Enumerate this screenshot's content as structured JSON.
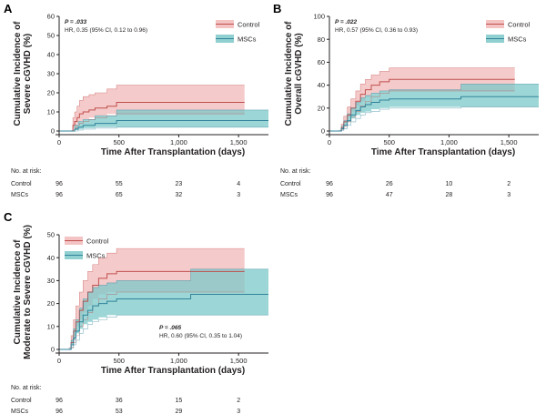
{
  "colors": {
    "control_line": "#c0504d",
    "control_band": "#f2b8b8",
    "mscs_line": "#31849b",
    "mscs_band": "#7cc8c8"
  },
  "chart_data": [
    {
      "id": "A",
      "type": "line",
      "panel_label": "A",
      "ylabel": [
        "Cumulative Incidence of",
        "Severe cGVHD (%)"
      ],
      "xlabel": "Time After Transplantation (days)",
      "ylim": [
        0,
        60
      ],
      "yticks": [
        0,
        10,
        20,
        30,
        40,
        50,
        60
      ],
      "xlim": [
        0,
        1750
      ],
      "xticks": [
        0,
        500,
        1000,
        1500
      ],
      "xtick_labels": [
        "0",
        "500",
        "1,000",
        "1,500"
      ],
      "stat_p": "P = .033",
      "stat_hr": "HR, 0.35 (95% CI, 0.12 to 0.96)",
      "stat_position": "top-left",
      "legend_position": "top-right",
      "series": [
        {
          "name": "Control",
          "x": [
            0,
            100,
            115,
            130,
            150,
            170,
            200,
            250,
            300,
            400,
            480,
            1550
          ],
          "y": [
            0,
            0,
            3,
            5,
            7,
            9,
            10,
            11,
            12,
            13,
            15,
            15
          ],
          "upper": [
            0,
            0,
            7,
            10,
            13,
            16,
            18,
            19,
            20,
            22,
            24,
            24
          ],
          "lower": [
            0,
            0,
            0.5,
            1.5,
            3,
            4,
            5,
            6,
            7,
            8,
            9,
            9
          ]
        },
        {
          "name": "MSCs",
          "x": [
            0,
            100,
            130,
            160,
            200,
            300,
            480,
            1750
          ],
          "y": [
            0,
            0,
            1,
            2,
            3,
            4,
            5.5,
            5.5
          ],
          "upper": [
            0,
            0,
            3,
            5,
            6,
            8,
            11,
            11
          ],
          "lower": [
            0,
            0,
            0,
            0.5,
            1,
            1.5,
            2,
            2
          ]
        }
      ],
      "risk_table": {
        "title": "No. at risk:",
        "rows": [
          {
            "label": "Control",
            "values": [
              "96",
              "55",
              "23",
              "4"
            ]
          },
          {
            "label": "MSCs",
            "values": [
              "96",
              "65",
              "32",
              "3"
            ]
          }
        ]
      }
    },
    {
      "id": "B",
      "type": "line",
      "panel_label": "B",
      "ylabel": [
        "Cumulative Incidence of",
        "Overall cGVHD (%)"
      ],
      "xlabel": "Time After Transplantation (days)",
      "ylim": [
        0,
        100
      ],
      "yticks": [
        0,
        20,
        40,
        60,
        80,
        100
      ],
      "xlim": [
        0,
        1750
      ],
      "xticks": [
        0,
        500,
        1000,
        1500
      ],
      "xtick_labels": [
        "0",
        "500",
        "1,000",
        "1,500"
      ],
      "stat_p": "P = .022",
      "stat_hr": "HR, 0.57 (95% CI, 0.36 to 0.93)",
      "stat_position": "top-left",
      "legend_position": "top-right",
      "series": [
        {
          "name": "Control",
          "x": [
            0,
            80,
            100,
            120,
            150,
            180,
            220,
            260,
            300,
            350,
            420,
            500,
            1100,
            1550
          ],
          "y": [
            0,
            0,
            3,
            8,
            14,
            20,
            26,
            32,
            36,
            40,
            43,
            45,
            45,
            45
          ],
          "upper": [
            0,
            0,
            6,
            13,
            21,
            28,
            35,
            41,
            45,
            49,
            52,
            55,
            55,
            55
          ],
          "lower": [
            0,
            0,
            1,
            4,
            8,
            12,
            17,
            22,
            26,
            30,
            33,
            35,
            35,
            35
          ]
        },
        {
          "name": "MSCs",
          "x": [
            0,
            80,
            100,
            120,
            150,
            180,
            220,
            260,
            300,
            350,
            420,
            500,
            1100,
            1750
          ],
          "y": [
            0,
            0,
            2,
            5,
            9,
            14,
            18,
            21,
            23,
            25,
            27,
            28,
            30,
            30
          ],
          "upper": [
            0,
            0,
            4,
            9,
            15,
            20,
            25,
            29,
            31,
            33,
            35,
            36,
            41,
            41
          ],
          "lower": [
            0,
            0,
            0.5,
            2,
            5,
            8,
            11,
            14,
            16,
            17,
            19,
            20,
            21,
            21
          ]
        }
      ],
      "risk_table": {
        "title": "No. at risk:",
        "rows": [
          {
            "label": "Control",
            "values": [
              "96",
              "26",
              "10",
              "2"
            ]
          },
          {
            "label": "MSCs",
            "values": [
              "96",
              "47",
              "28",
              "3"
            ]
          }
        ]
      }
    },
    {
      "id": "C",
      "type": "line",
      "panel_label": "C",
      "ylabel": [
        "Cumulative Incidence of",
        "Moderate to Severe cGVHD (%)"
      ],
      "xlabel": "Time After Transplantation (days)",
      "ylim": [
        0,
        50
      ],
      "yticks": [
        0,
        10,
        20,
        30,
        40,
        50
      ],
      "xlim": [
        0,
        1750
      ],
      "xticks": [
        0,
        500,
        1000,
        1500
      ],
      "xtick_labels": [
        "0",
        "500",
        "1,000",
        "1,500"
      ],
      "stat_p": "P = .065",
      "stat_hr": "HR, 0.60 (95% CI, 0.35 to 1.04)",
      "stat_position": "bottom-right",
      "legend_position": "top-left",
      "series": [
        {
          "name": "Control",
          "x": [
            0,
            80,
            100,
            120,
            140,
            170,
            200,
            240,
            280,
            330,
            400,
            480,
            1550
          ],
          "y": [
            0,
            0,
            3,
            8,
            12,
            17,
            21,
            25,
            28,
            31,
            33,
            34,
            34
          ],
          "upper": [
            0,
            0,
            6,
            13,
            19,
            25,
            30,
            34,
            37,
            40,
            42,
            44,
            44
          ],
          "lower": [
            0,
            0,
            1,
            3,
            6,
            10,
            13,
            16,
            19,
            22,
            24,
            25,
            25
          ]
        },
        {
          "name": "MSCs",
          "x": [
            0,
            80,
            100,
            120,
            140,
            170,
            200,
            240,
            280,
            330,
            400,
            480,
            1100,
            1750
          ],
          "y": [
            0,
            0,
            2,
            5,
            8,
            12,
            15,
            17,
            19,
            20,
            21,
            22,
            24,
            24
          ],
          "upper": [
            0,
            0,
            4,
            9,
            13,
            18,
            22,
            25,
            27,
            28,
            29,
            30,
            35,
            35
          ],
          "lower": [
            0,
            0,
            0.5,
            2,
            4,
            7,
            9,
            11,
            12,
            13,
            14,
            15,
            15,
            15
          ]
        }
      ],
      "risk_table": {
        "title": "No. at risk:",
        "rows": [
          {
            "label": "Control",
            "values": [
              "96",
              "36",
              "15",
              "2"
            ]
          },
          {
            "label": "MSCs",
            "values": [
              "96",
              "53",
              "29",
              "3"
            ]
          }
        ]
      }
    }
  ]
}
